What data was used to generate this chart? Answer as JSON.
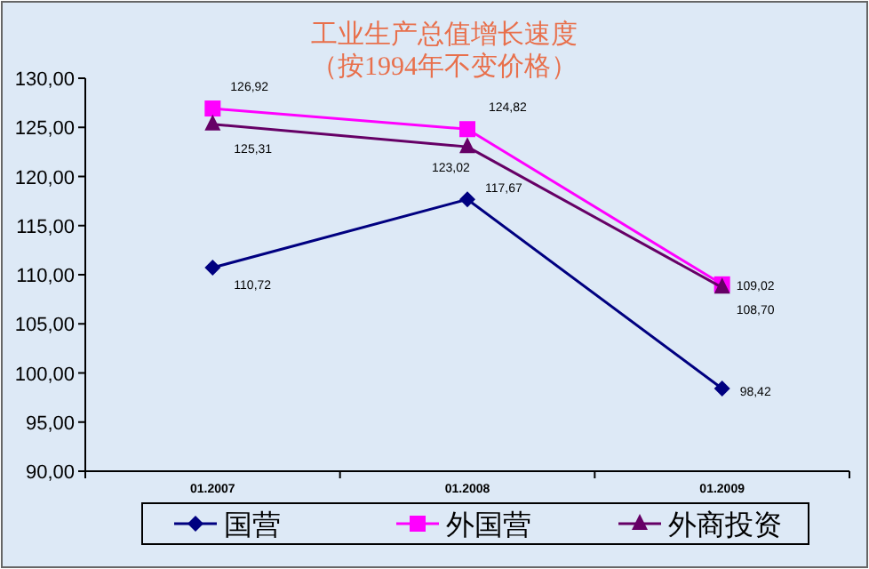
{
  "chart_data": {
    "type": "line",
    "title": "工业生产总值增长速度",
    "subtitle": "（按1994年不变价格）",
    "categories": [
      "01.2007",
      "01.2008",
      "01.2009"
    ],
    "ylim": [
      90,
      130
    ],
    "yticks": [
      {
        "value": 90,
        "label": "90,00"
      },
      {
        "value": 95,
        "label": "95,00"
      },
      {
        "value": 100,
        "label": "100,00"
      },
      {
        "value": 105,
        "label": "105,00"
      },
      {
        "value": 110,
        "label": "110,00"
      },
      {
        "value": 115,
        "label": "115,00"
      },
      {
        "value": 120,
        "label": "120,00"
      },
      {
        "value": 125,
        "label": "125,00"
      },
      {
        "value": 130,
        "label": "130,00"
      }
    ],
    "series": [
      {
        "name": "国营",
        "color": "#000080",
        "marker": "diamond",
        "values": [
          110.72,
          117.67,
          98.42
        ],
        "value_labels": [
          "110,72",
          "117,67",
          "98,42"
        ]
      },
      {
        "name": "外国营",
        "color": "#ff00ff",
        "marker": "square",
        "values": [
          126.92,
          124.82,
          109.02
        ],
        "value_labels": [
          "126,92",
          "124,82",
          "109,02"
        ]
      },
      {
        "name": "外商投资",
        "color": "#660066",
        "marker": "triangle",
        "values": [
          125.31,
          123.02,
          108.7
        ],
        "value_labels": [
          "125,31",
          "123,02",
          "108,70"
        ]
      }
    ],
    "legend": "bottom",
    "grid": false
  }
}
